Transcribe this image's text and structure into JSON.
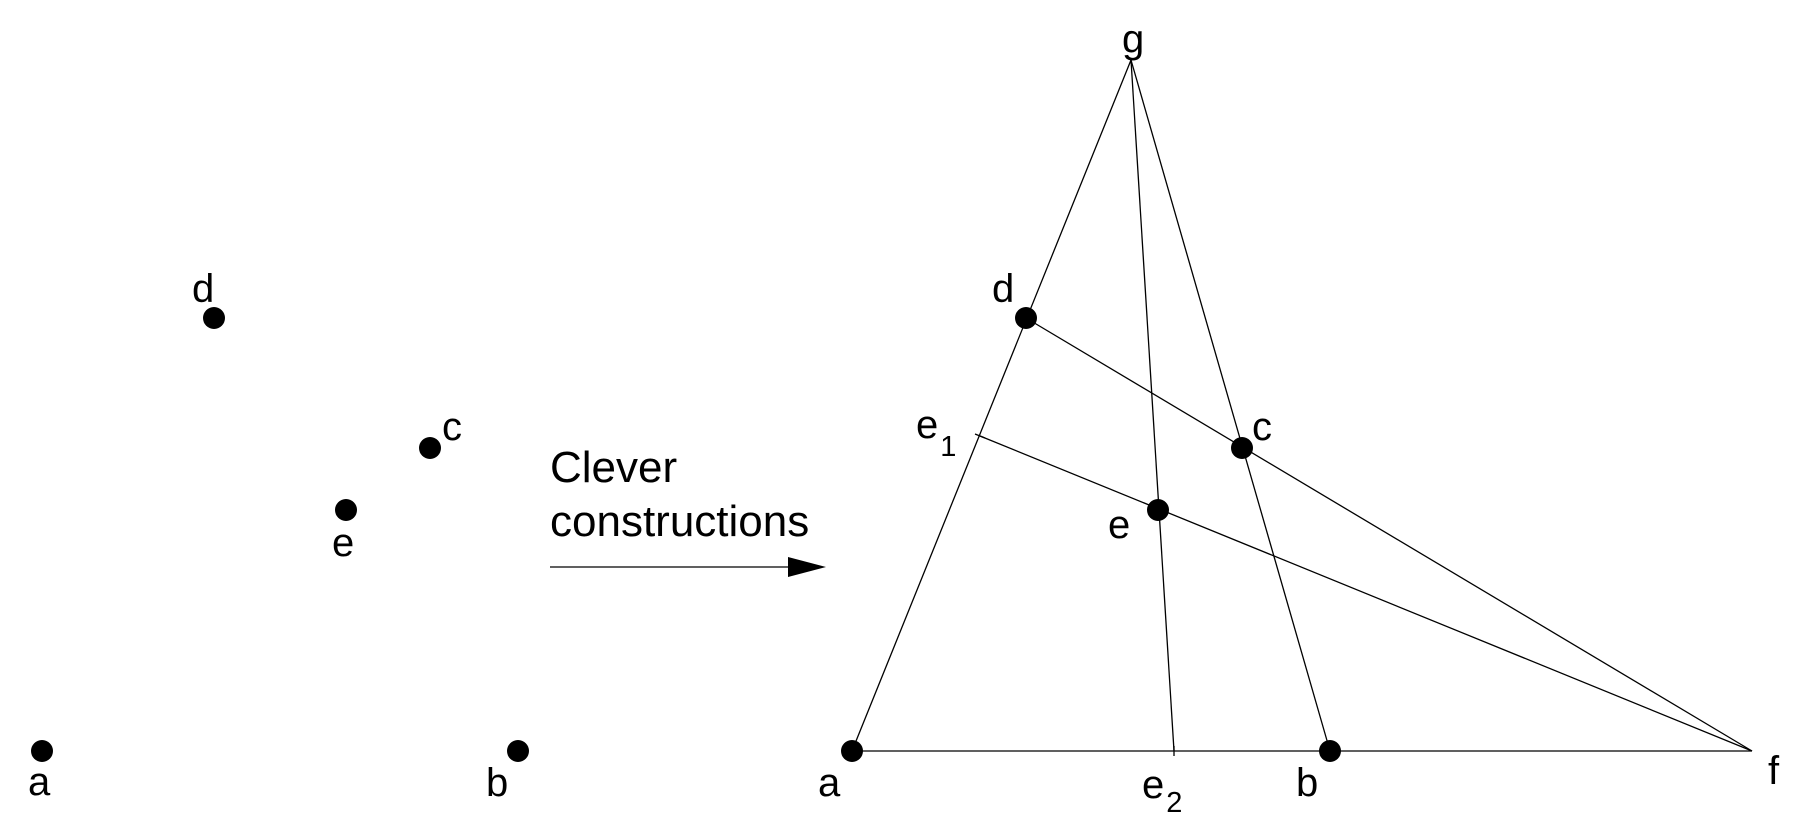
{
  "left_points": {
    "a": "a",
    "b": "b",
    "c": "c",
    "d": "d",
    "e": "e"
  },
  "arrow_caption": {
    "line1": "Clever",
    "line2": "constructions"
  },
  "construction": {
    "a": "a",
    "b": "b",
    "c": "c",
    "d": "d",
    "e": "e",
    "f": "f",
    "g": "g",
    "e1": {
      "base": "e",
      "sub": "1"
    },
    "e2": {
      "base": "e",
      "sub": "2"
    }
  }
}
